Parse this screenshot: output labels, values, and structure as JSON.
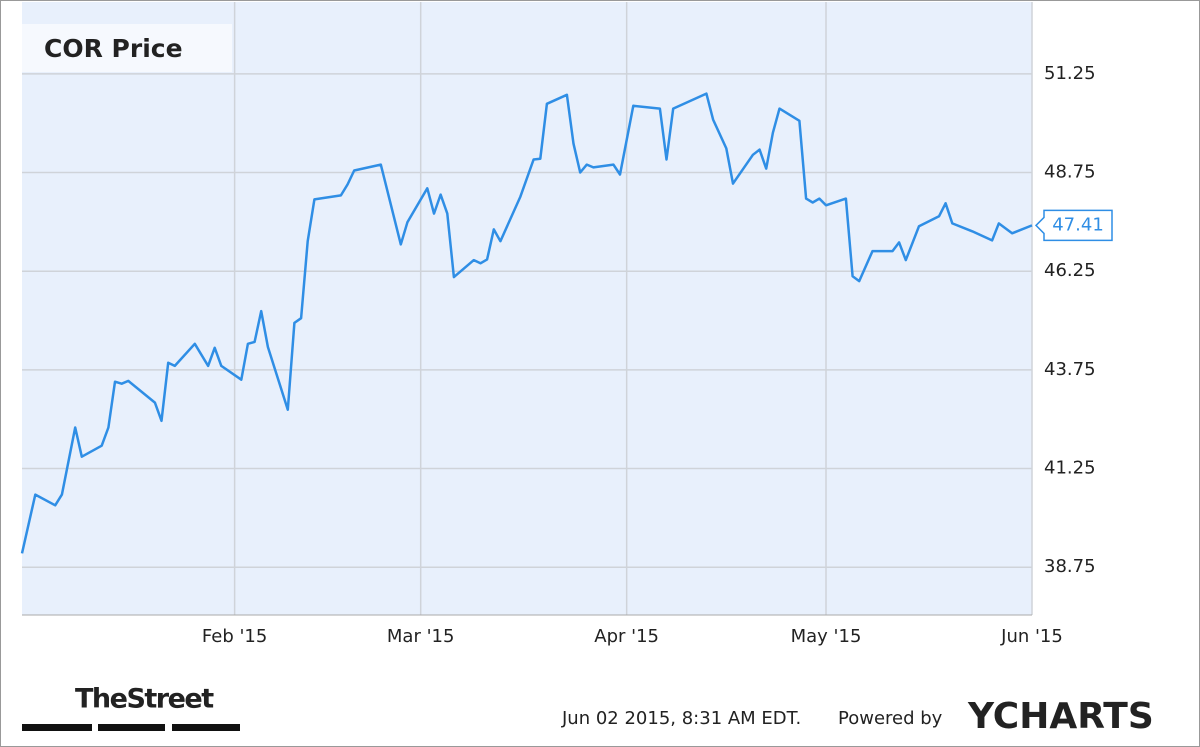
{
  "chart_data": {
    "type": "line",
    "title": "COR Price",
    "x": [
      0,
      2,
      5,
      6,
      8,
      9,
      12,
      13,
      14,
      15,
      16,
      20,
      21,
      22,
      23,
      26,
      28,
      29,
      30,
      33,
      34,
      35,
      36,
      37,
      40,
      41,
      42,
      43,
      44,
      48,
      49,
      50,
      54,
      57,
      58,
      61,
      62,
      63,
      64,
      65,
      68,
      69,
      70,
      71,
      72,
      75,
      77,
      78,
      79,
      82,
      83,
      84,
      85,
      86,
      89,
      90,
      92,
      96,
      97,
      98,
      103,
      104,
      106,
      107,
      110,
      111,
      112,
      113,
      114,
      117,
      118,
      119,
      120,
      121,
      124,
      125,
      126,
      128,
      131,
      132,
      133,
      135,
      138,
      139,
      140,
      143,
      146,
      147,
      149,
      152
    ],
    "series": [
      {
        "name": "COR Price",
        "color": "#2f8ee5",
        "values": [
          39.1,
          40.59,
          40.32,
          40.59,
          42.29,
          41.55,
          41.83,
          42.29,
          43.45,
          43.4,
          43.47,
          42.92,
          42.46,
          43.93,
          43.85,
          44.41,
          43.85,
          44.31,
          43.85,
          43.5,
          44.41,
          44.46,
          45.24,
          44.33,
          42.74,
          44.94,
          45.06,
          47.01,
          48.07,
          48.17,
          48.45,
          48.8,
          48.95,
          46.93,
          47.49,
          48.35,
          47.71,
          48.19,
          47.71,
          46.1,
          46.53,
          46.45,
          46.55,
          47.31,
          47.01,
          48.14,
          49.08,
          49.1,
          50.49,
          50.72,
          49.48,
          48.75,
          48.95,
          48.88,
          48.95,
          48.7,
          50.44,
          50.37,
          49.08,
          50.37,
          50.75,
          50.09,
          49.36,
          48.47,
          49.2,
          49.33,
          48.85,
          49.76,
          50.37,
          50.06,
          48.09,
          47.99,
          48.09,
          47.92,
          48.09,
          46.12,
          46.0,
          46.76,
          46.76,
          46.98,
          46.53,
          47.39,
          47.64,
          47.97,
          47.46,
          47.26,
          47.03,
          47.46,
          47.21,
          47.41
        ]
      }
    ],
    "xlim": [
      0,
      152
    ],
    "xticks": [
      {
        "value": 32,
        "label": "Feb '15"
      },
      {
        "value": 60,
        "label": "Mar '15"
      },
      {
        "value": 91,
        "label": "Apr '15"
      },
      {
        "value": 121,
        "label": "May '15"
      },
      {
        "value": 152,
        "label": "Jun '15"
      }
    ],
    "ylim": [
      37.54,
      53.07
    ],
    "yticks": [
      38.75,
      41.25,
      43.75,
      46.25,
      48.75,
      51.25
    ],
    "grid": true
  },
  "footer": {
    "source_logo": "TheStreet",
    "timestamp": "Jun 02 2015, 8:31 AM EDT.",
    "powered_by": "Powered by",
    "brand": "YCHARTS"
  }
}
